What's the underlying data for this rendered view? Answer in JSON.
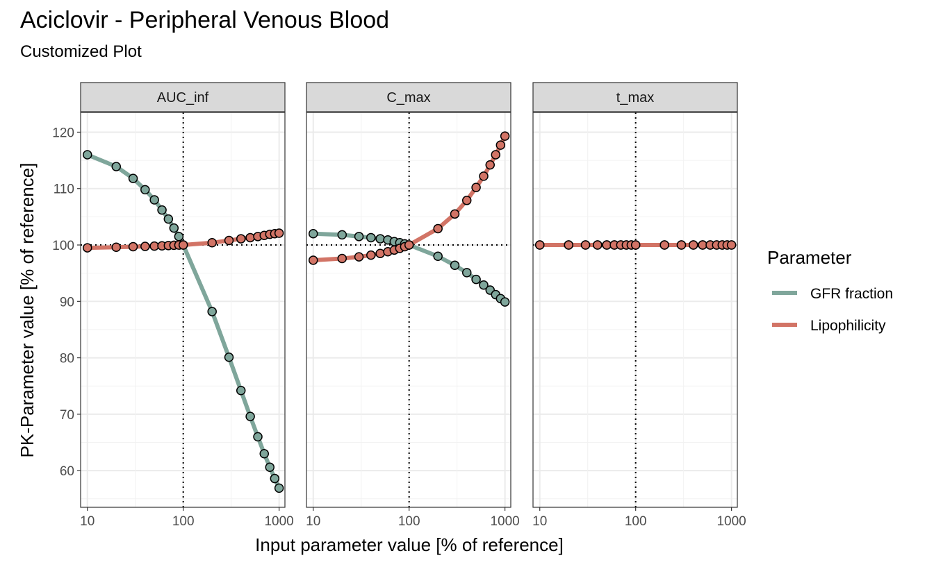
{
  "chart_data": {
    "type": "line",
    "title": "Aciclovir - Peripheral Venous Blood",
    "subtitle": "Customized Plot",
    "xlabel": "Input parameter value [% of reference]",
    "ylabel": "PK-Parameter value [% of reference]",
    "x_scale": "log",
    "xlim": [
      8.5,
      1150
    ],
    "ylim": [
      53.5,
      123.5
    ],
    "x_ticks": [
      10,
      100,
      1000
    ],
    "x_tick_labels": [
      "10",
      "100",
      "1000"
    ],
    "y_ticks": [
      60,
      70,
      80,
      90,
      100,
      110,
      120
    ],
    "y_tick_labels": [
      "60",
      "70",
      "80",
      "90",
      "100",
      "110",
      "120"
    ],
    "reference_lines": {
      "x": 100,
      "y": 100
    },
    "grid": true,
    "legend": {
      "title": "Parameter",
      "placement": "right",
      "items": [
        {
          "label": "GFR fraction",
          "color": "#7fa69b"
        },
        {
          "label": "Lipophilicity",
          "color": "#d27466"
        }
      ]
    },
    "x": [
      10,
      20,
      30,
      40,
      50,
      60,
      70,
      80,
      90,
      100,
      200,
      300,
      400,
      500,
      600,
      700,
      800,
      900,
      1000
    ],
    "panels": [
      {
        "name": "AUC_inf",
        "series": [
          {
            "name": "GFR fraction",
            "values": [
              116.0,
              113.9,
              111.8,
              109.8,
              108.0,
              106.2,
              104.6,
              103.0,
              101.5,
              100.0,
              88.2,
              80.1,
              74.2,
              69.6,
              66.0,
              63.0,
              60.6,
              58.6,
              56.9
            ]
          },
          {
            "name": "Lipophilicity",
            "values": [
              99.5,
              99.6,
              99.7,
              99.75,
              99.8,
              99.85,
              99.9,
              99.95,
              99.98,
              100.0,
              100.4,
              100.8,
              101.1,
              101.3,
              101.5,
              101.7,
              101.9,
              102.0,
              102.1
            ]
          }
        ]
      },
      {
        "name": "C_max",
        "series": [
          {
            "name": "GFR fraction",
            "values": [
              102.0,
              101.8,
              101.5,
              101.3,
              101.1,
              100.9,
              100.6,
              100.4,
              100.2,
              100.0,
              98.0,
              96.4,
              95.1,
              93.9,
              92.9,
              92.0,
              91.2,
              90.5,
              89.9
            ]
          },
          {
            "name": "Lipophilicity",
            "values": [
              97.3,
              97.6,
              97.9,
              98.2,
              98.5,
              98.8,
              99.1,
              99.4,
              99.7,
              100.0,
              102.9,
              105.5,
              107.9,
              110.2,
              112.2,
              114.2,
              116.0,
              117.7,
              119.3
            ]
          }
        ]
      },
      {
        "name": "t_max",
        "series": [
          {
            "name": "GFR fraction",
            "values": [
              100,
              100,
              100,
              100,
              100,
              100,
              100,
              100,
              100,
              100,
              100,
              100,
              100,
              100,
              100,
              100,
              100,
              100,
              100
            ]
          },
          {
            "name": "Lipophilicity",
            "values": [
              100,
              100,
              100,
              100,
              100,
              100,
              100,
              100,
              100,
              100,
              100,
              100,
              100,
              100,
              100,
              100,
              100,
              100,
              100
            ]
          }
        ]
      }
    ]
  }
}
